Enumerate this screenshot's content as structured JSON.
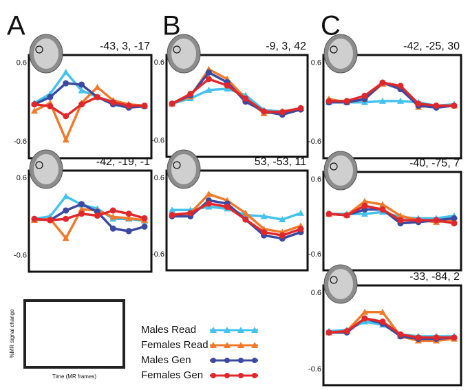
{
  "panel_labels": [
    "A",
    "B",
    "C"
  ],
  "axis_key": {
    "ylabel": "%MR signal change",
    "xlabel": "Time (MR frames)"
  },
  "chart_data": [
    {
      "type": "line",
      "title": "-43, 3, -17",
      "categories": [
        null,
        null,
        null,
        null,
        null,
        null,
        null,
        null
      ],
      "ylim": [
        -0.85,
        0.72
      ],
      "yticks": [
        -0.6,
        0.6
      ],
      "series": [
        {
          "name": "Males Read",
          "color": "#44c2ee",
          "marker": "triangle",
          "values": [
            -0.01,
            0.13,
            0.46,
            0.18,
            0.08,
            0.01,
            -0.05,
            -0.05
          ]
        },
        {
          "name": "Females Read",
          "color": "#f07a2a",
          "marker": "triangle",
          "values": [
            -0.13,
            -0.01,
            -0.57,
            -0.01,
            0.23,
            0.03,
            -0.03,
            -0.05
          ]
        },
        {
          "name": "Males Gen",
          "color": "#3b4aa0",
          "marker": "circle",
          "values": [
            -0.03,
            0.08,
            0.29,
            0.27,
            0.08,
            -0.03,
            -0.08,
            -0.06
          ]
        },
        {
          "name": "Females Gen",
          "color": "#e0282c",
          "marker": "circle",
          "values": [
            -0.03,
            -0.06,
            -0.21,
            -0.03,
            0.08,
            0.0,
            -0.05,
            -0.05
          ]
        }
      ]
    },
    {
      "type": "line",
      "title": "-42, -19, -1",
      "categories": [
        null,
        null,
        null,
        null,
        null,
        null,
        null,
        null
      ],
      "ylim": [
        -0.85,
        0.72
      ],
      "yticks": [
        -0.6,
        0.6
      ],
      "series": [
        {
          "name": "Males Read",
          "color": "#44c2ee",
          "marker": "triangle",
          "values": [
            -0.03,
            0.01,
            0.32,
            0.19,
            0.13,
            -0.03,
            -0.03,
            -0.06
          ]
        },
        {
          "name": "Females Read",
          "color": "#f07a2a",
          "marker": "triangle",
          "values": [
            -0.05,
            -0.03,
            -0.33,
            0.12,
            0.1,
            0.0,
            -0.02,
            -0.05
          ]
        },
        {
          "name": "Males Gen",
          "color": "#3b4aa0",
          "marker": "circle",
          "values": [
            -0.03,
            -0.05,
            0.1,
            0.2,
            0.08,
            -0.18,
            -0.22,
            -0.15
          ]
        },
        {
          "name": "Females Gen",
          "color": "#e0282c",
          "marker": "circle",
          "values": [
            -0.03,
            -0.05,
            -0.03,
            0.05,
            0.02,
            0.1,
            0.05,
            -0.02
          ]
        }
      ]
    },
    {
      "type": "line",
      "title": "-9, 3, 42",
      "categories": [
        null,
        null,
        null,
        null,
        null,
        null,
        null,
        null
      ],
      "ylim": [
        -0.85,
        0.72
      ],
      "yticks": [
        -0.6,
        0.6
      ],
      "series": [
        {
          "name": "Males Read",
          "color": "#44c2ee",
          "marker": "triangle",
          "values": [
            -0.03,
            0.05,
            0.18,
            0.2,
            0.1,
            -0.13,
            -0.15,
            -0.1
          ]
        },
        {
          "name": "Females Read",
          "color": "#f07a2a",
          "marker": "triangle",
          "values": [
            -0.03,
            0.08,
            0.5,
            0.35,
            0.05,
            -0.18,
            -0.15,
            -0.1
          ]
        },
        {
          "name": "Males Gen",
          "color": "#3b4aa0",
          "marker": "circle",
          "values": [
            -0.03,
            0.1,
            0.45,
            0.3,
            0.0,
            -0.15,
            -0.2,
            -0.12
          ]
        },
        {
          "name": "Females Gen",
          "color": "#e0282c",
          "marker": "circle",
          "values": [
            -0.03,
            0.12,
            0.35,
            0.25,
            0.05,
            -0.15,
            -0.16,
            -0.1
          ]
        }
      ]
    },
    {
      "type": "line",
      "title": "53, -53, 11",
      "categories": [
        null,
        null,
        null,
        null,
        null,
        null,
        null,
        null
      ],
      "ylim": [
        -0.85,
        0.72
      ],
      "yticks": [
        -0.6,
        0.6
      ],
      "series": [
        {
          "name": "Males Read",
          "color": "#44c2ee",
          "marker": "triangle",
          "values": [
            0.1,
            0.1,
            0.15,
            0.12,
            0.02,
            0.0,
            -0.05,
            0.05
          ]
        },
        {
          "name": "Females Read",
          "color": "#f07a2a",
          "marker": "triangle",
          "values": [
            0.03,
            0.05,
            0.35,
            0.25,
            0.05,
            -0.2,
            -0.25,
            -0.15
          ]
        },
        {
          "name": "Males Gen",
          "color": "#3b4aa0",
          "marker": "circle",
          "values": [
            0.0,
            0.0,
            0.25,
            0.2,
            -0.05,
            -0.3,
            -0.35,
            -0.25
          ]
        },
        {
          "name": "Females Gen",
          "color": "#e0282c",
          "marker": "circle",
          "values": [
            0.02,
            0.05,
            0.2,
            0.15,
            -0.05,
            -0.25,
            -0.3,
            -0.2
          ]
        }
      ]
    },
    {
      "type": "line",
      "title": "-42, -25, 30",
      "categories": [
        null,
        null,
        null,
        null,
        null,
        null,
        null,
        null
      ],
      "ylim": [
        -0.85,
        0.72
      ],
      "yticks": [
        -0.6,
        0.6
      ],
      "series": [
        {
          "name": "Males Read",
          "color": "#44c2ee",
          "marker": "triangle",
          "values": [
            0.0,
            0.0,
            0.0,
            0.02,
            0.02,
            0.0,
            -0.05,
            -0.03
          ]
        },
        {
          "name": "Females Read",
          "color": "#f07a2a",
          "marker": "triangle",
          "values": [
            0.05,
            0.0,
            0.05,
            0.28,
            0.25,
            -0.07,
            -0.05,
            -0.05
          ]
        },
        {
          "name": "Males Gen",
          "color": "#3b4aa0",
          "marker": "circle",
          "values": [
            0.0,
            0.0,
            0.05,
            0.3,
            0.2,
            -0.05,
            -0.08,
            -0.05
          ]
        },
        {
          "name": "Females Gen",
          "color": "#e0282c",
          "marker": "circle",
          "values": [
            0.02,
            0.02,
            0.1,
            0.3,
            0.25,
            -0.02,
            -0.05,
            -0.05
          ]
        }
      ]
    },
    {
      "type": "line",
      "title": "-40, -75, 7",
      "categories": [
        null,
        null,
        null,
        null,
        null,
        null,
        null,
        null
      ],
      "ylim": [
        -0.85,
        0.72
      ],
      "yticks": [
        -0.6,
        0.6
      ],
      "series": [
        {
          "name": "Males Read",
          "color": "#44c2ee",
          "marker": "triangle",
          "values": [
            0.05,
            0.05,
            0.05,
            0.08,
            0.0,
            -0.02,
            -0.02,
            0.02
          ]
        },
        {
          "name": "Females Read",
          "color": "#f07a2a",
          "marker": "triangle",
          "values": [
            0.05,
            0.03,
            0.25,
            0.2,
            0.02,
            -0.05,
            -0.08,
            -0.05
          ]
        },
        {
          "name": "Males Gen",
          "color": "#3b4aa0",
          "marker": "circle",
          "values": [
            0.05,
            0.03,
            0.12,
            0.12,
            -0.1,
            -0.08,
            -0.05,
            -0.02
          ]
        },
        {
          "name": "Females Gen",
          "color": "#e0282c",
          "marker": "circle",
          "values": [
            0.05,
            0.03,
            0.18,
            0.12,
            -0.05,
            -0.05,
            -0.05,
            -0.1
          ]
        }
      ]
    },
    {
      "type": "line",
      "title": "-33, -84, 2",
      "categories": [
        null,
        null,
        null,
        null,
        null,
        null,
        null,
        null
      ],
      "ylim": [
        -0.85,
        0.72
      ],
      "yticks": [
        -0.6,
        0.6
      ],
      "series": [
        {
          "name": "Males Read",
          "color": "#44c2ee",
          "marker": "triangle",
          "values": [
            0.0,
            0.02,
            0.15,
            0.1,
            -0.05,
            -0.08,
            -0.08,
            -0.08
          ]
        },
        {
          "name": "Females Read",
          "color": "#f07a2a",
          "marker": "triangle",
          "values": [
            -0.02,
            0.0,
            0.3,
            0.3,
            -0.08,
            -0.15,
            -0.15,
            -0.12
          ]
        },
        {
          "name": "Males Gen",
          "color": "#3b4aa0",
          "marker": "circle",
          "values": [
            -0.02,
            -0.02,
            0.2,
            0.12,
            -0.08,
            -0.12,
            -0.12,
            -0.1
          ]
        },
        {
          "name": "Females Gen",
          "color": "#e0282c",
          "marker": "circle",
          "values": [
            -0.02,
            0.0,
            0.2,
            0.15,
            -0.05,
            -0.1,
            -0.1,
            -0.1
          ]
        }
      ]
    }
  ]
}
